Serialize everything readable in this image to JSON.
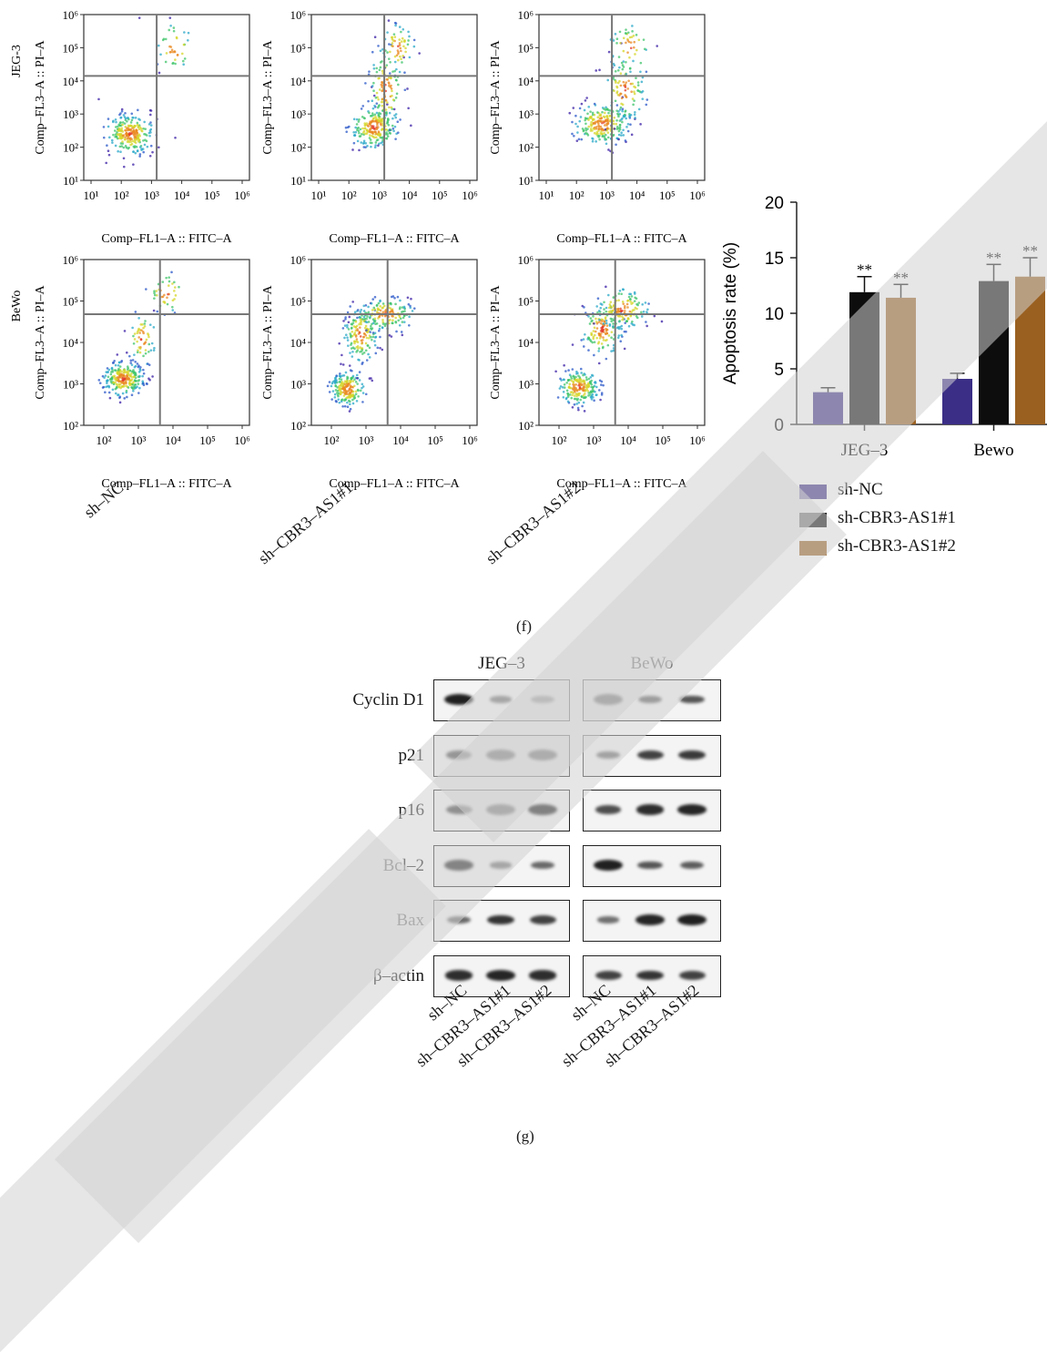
{
  "flow": {
    "row_labels": [
      "JEG-3",
      "BeWo"
    ],
    "y_axis_label": "Comp–FL3–A :: PI–A",
    "x_axis_label": "Comp–FL1–A :: FITC–A",
    "row1_ticks": {
      "x": [
        "10¹",
        "10²",
        "10³",
        "10⁴",
        "10⁵",
        "10⁶"
      ],
      "y": [
        "10⁶",
        "10⁵",
        "10⁴",
        "10³",
        "10²",
        "10¹"
      ]
    },
    "row2_ticks": {
      "x": [
        "10²",
        "10³",
        "10⁴",
        "10⁵",
        "10⁶"
      ],
      "y": [
        "10⁶",
        "10⁵",
        "10⁴",
        "10³",
        "10²"
      ]
    },
    "groups": [
      "sh–NC",
      "sh–CBR3–AS1#1",
      "sh–CBR3–AS1#2"
    ]
  },
  "panel_f_caption": "(f)",
  "panel_g_caption": "(g)",
  "chart_data": {
    "type": "bar",
    "categories": [
      "JEG–3",
      "Bewo"
    ],
    "series": [
      {
        "name": "sh-NC",
        "values": [
          2.9,
          4.1
        ],
        "errors": [
          0.4,
          0.5
        ],
        "sig": [
          "",
          ""
        ],
        "color": "#3a2e86"
      },
      {
        "name": "sh-CBR3-AS1#1",
        "values": [
          11.9,
          12.9
        ],
        "errors": [
          1.4,
          1.5
        ],
        "sig": [
          "**",
          "**"
        ],
        "color": "#0d0d0d"
      },
      {
        "name": "sh-CBR3-AS1#2",
        "values": [
          11.4,
          13.3
        ],
        "errors": [
          1.2,
          1.7
        ],
        "sig": [
          "**",
          "**"
        ],
        "color": "#9a6020"
      }
    ],
    "ylabel": "Apoptosis rate (%)",
    "ylim": [
      0,
      20
    ],
    "yticks": [
      "0",
      "5",
      "10",
      "15",
      "20"
    ],
    "legend_position": "bottom"
  },
  "western": {
    "cell_lines": [
      "JEG–3",
      "BeWo"
    ],
    "proteins": [
      "Cyclin D1",
      "p21",
      "p16",
      "Bcl–2",
      "Bax",
      "β–actin"
    ],
    "lanes": [
      "sh–NC",
      "sh–CBR3–AS1#1",
      "sh–CBR3–AS1#2"
    ],
    "band_intensity": {
      "JEG–3": [
        [
          1.0,
          0.4,
          0.45
        ],
        [
          0.65,
          0.95,
          1.0
        ],
        [
          0.75,
          0.95,
          1.0
        ],
        [
          0.95,
          0.4,
          0.45
        ],
        [
          0.45,
          0.85,
          0.75
        ],
        [
          0.9,
          0.95,
          0.9
        ]
      ],
      "BeWo": [
        [
          1.0,
          0.55,
          0.6
        ],
        [
          0.45,
          0.75,
          0.8
        ],
        [
          0.65,
          0.9,
          0.95
        ],
        [
          1.0,
          0.6,
          0.55
        ],
        [
          0.4,
          0.95,
          1.0
        ],
        [
          0.75,
          0.85,
          0.75
        ]
      ]
    }
  }
}
